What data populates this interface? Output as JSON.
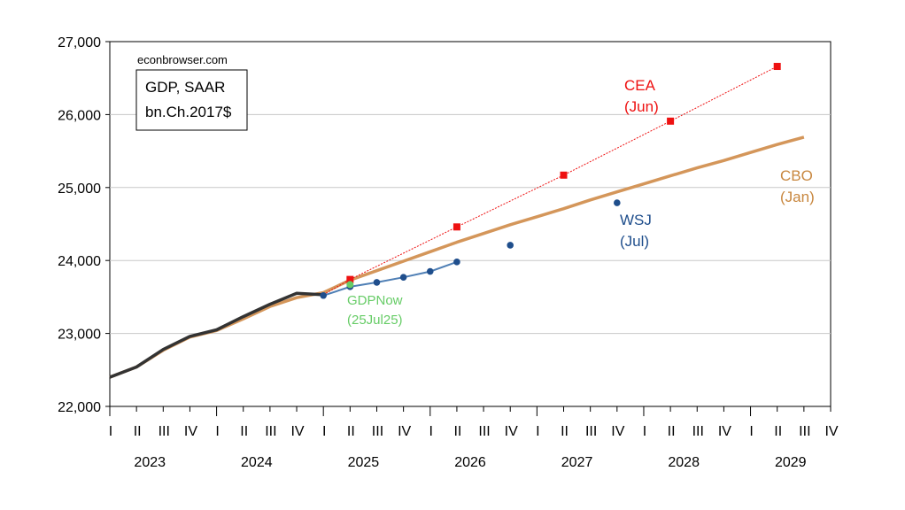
{
  "chart_data": {
    "type": "line",
    "watermark": "econbrowser.com",
    "title_box": [
      "GDP, SAAR",
      "bn.Ch.2017$"
    ],
    "ylim": [
      22000,
      27000
    ],
    "y_ticks": [
      22000,
      23000,
      24000,
      25000,
      26000,
      27000
    ],
    "y_tick_labels": [
      "22,000",
      "23,000",
      "24,000",
      "25,000",
      "26,000",
      "27,000"
    ],
    "quarter_labels": [
      "I",
      "II",
      "III",
      "IV",
      "I",
      "II",
      "III",
      "IV",
      "I",
      "II",
      "III",
      "IV",
      "I",
      "II",
      "III",
      "IV",
      "I",
      "II",
      "III",
      "IV",
      "I",
      "II",
      "III",
      "IV",
      "I",
      "II",
      "III",
      "IV"
    ],
    "year_labels": [
      "2023",
      "2024",
      "2025",
      "2026",
      "2027",
      "2028",
      "2029"
    ],
    "grid": "horizontal",
    "series": [
      {
        "key": "actual",
        "color": "#333333",
        "points": [
          [
            0,
            22400
          ],
          [
            1,
            22540
          ],
          [
            2,
            22780
          ],
          [
            3,
            22960
          ],
          [
            4,
            23050
          ],
          [
            5,
            23230
          ],
          [
            6,
            23400
          ],
          [
            7,
            23550
          ],
          [
            8,
            23530
          ]
        ]
      },
      {
        "key": "cbo",
        "name": "CBO",
        "label_lines": [
          "CBO",
          "(Jan)"
        ],
        "color": "#d4965a",
        "points": [
          [
            0,
            22400
          ],
          [
            1,
            22540
          ],
          [
            2,
            22770
          ],
          [
            3,
            22950
          ],
          [
            4,
            23040
          ],
          [
            5,
            23200
          ],
          [
            6,
            23370
          ],
          [
            7,
            23490
          ],
          [
            8,
            23560
          ],
          [
            9,
            23730
          ],
          [
            10,
            23860
          ],
          [
            11,
            23990
          ],
          [
            12,
            24120
          ],
          [
            13,
            24250
          ],
          [
            14,
            24370
          ],
          [
            15,
            24490
          ],
          [
            16,
            24600
          ],
          [
            17,
            24710
          ],
          [
            18,
            24830
          ],
          [
            19,
            24940
          ],
          [
            20,
            25050
          ],
          [
            21,
            25160
          ],
          [
            22,
            25270
          ],
          [
            23,
            25370
          ],
          [
            24,
            25480
          ],
          [
            25,
            25590
          ],
          [
            26,
            25690
          ]
        ]
      },
      {
        "key": "cea",
        "name": "CEA",
        "label_lines": [
          "CEA",
          "(Jun)"
        ],
        "color": "#ee1111",
        "points": [
          [
            9,
            23740
          ],
          [
            13,
            24460
          ],
          [
            17,
            25170
          ],
          [
            21,
            25910
          ],
          [
            25,
            26660
          ]
        ]
      },
      {
        "key": "wsj",
        "name": "WSJ",
        "label_lines": [
          "WSJ",
          "(Jul)"
        ],
        "color": "#1f4e8c",
        "points": [
          [
            8,
            23520
          ],
          [
            9,
            23640
          ],
          [
            10,
            23700
          ],
          [
            11,
            23770
          ],
          [
            12,
            23850
          ],
          [
            13,
            23980
          ],
          [
            15,
            24210
          ],
          [
            19,
            24790
          ]
        ]
      },
      {
        "key": "gdpnow",
        "name": "GDPNow",
        "label_lines": [
          "GDPNow",
          "(25Jul25)"
        ],
        "color": "#66cc66",
        "points": [
          [
            9,
            23670
          ]
        ]
      }
    ]
  }
}
